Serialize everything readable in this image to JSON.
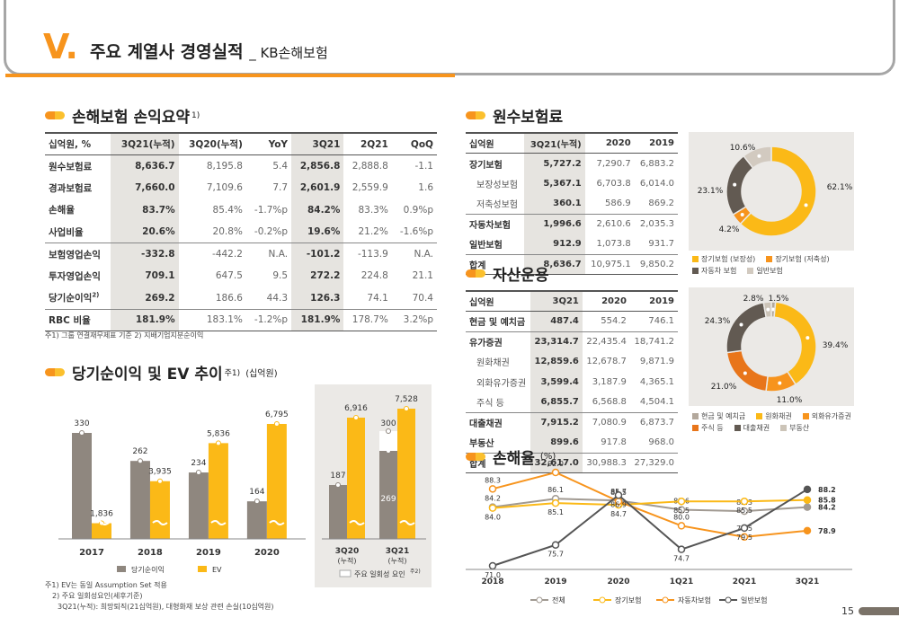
{
  "header": {
    "roman": "V.",
    "title": "주요 계열사 경영실적",
    "subtitle": "_ KB손해보험"
  },
  "sec1": {
    "title": "손해보험 손익요약",
    "sup": "1)",
    "cols": [
      "십억원, %",
      "3Q21(누적)",
      "3Q20(누적)",
      "YoY",
      "3Q21",
      "2Q21",
      "QoQ"
    ],
    "rows": [
      [
        "원수보험료",
        "8,636.7",
        "8,195.8",
        "5.4",
        "2,856.8",
        "2,888.8",
        "-1.1"
      ],
      [
        "경과보험료",
        "7,660.0",
        "7,109.6",
        "7.7",
        "2,601.9",
        "2,559.9",
        "1.6"
      ],
      [
        "손해율",
        "83.7%",
        "85.4%",
        "-1.7%p",
        "84.2%",
        "83.3%",
        "0.9%p"
      ],
      [
        "사업비율",
        "20.6%",
        "20.8%",
        "-0.2%p",
        "19.6%",
        "21.2%",
        "-1.6%p"
      ],
      [
        "보험영업손익",
        "-332.8",
        "-442.2",
        "N.A.",
        "-101.2",
        "-113.9",
        "N.A."
      ],
      [
        "투자영업손익",
        "709.1",
        "647.5",
        "9.5",
        "272.2",
        "224.8",
        "21.1"
      ],
      [
        "당기순이익",
        "269.2",
        "186.6",
        "44.3",
        "126.3",
        "74.1",
        "70.4"
      ],
      [
        "RBC 비율",
        "181.9%",
        "183.1%",
        "-1.2%p",
        "181.9%",
        "178.7%",
        "3.2%p"
      ]
    ],
    "row7_sup": "2)",
    "footnote": "주1) 그룹 연결재무제표 기준   2) 지배기업지분순이익"
  },
  "sec2": {
    "title": "당기순이익 및 EV 추이",
    "sup": "주1)",
    "unit": "(십억원)",
    "legend": [
      "당기순이익",
      "EV"
    ],
    "legend2": "주요 일회성 요인",
    "legend2_sup": "주2)",
    "footnotes": [
      "주1) EV는 동일 Assumption Set 적용",
      "2) 주요 일회성요인(세후기준)",
      "3Q21(누적): 희망퇴직(21십억원), 대형화재 보상 관련 손실(10십억원)"
    ]
  },
  "chart_data": [
    {
      "type": "bar",
      "categories": [
        "2017",
        "2018",
        "2019",
        "2020"
      ],
      "series": [
        {
          "name": "당기순이익",
          "values": [
            330,
            262,
            234,
            164
          ]
        },
        {
          "name": "EV",
          "values": [
            1836,
            3935,
            5836,
            6795
          ]
        }
      ]
    },
    {
      "type": "bar",
      "categories": [
        "3Q20 (누적)",
        "3Q21 (누적)"
      ],
      "series": [
        {
          "name": "당기순이익",
          "values": [
            187,
            269
          ]
        },
        {
          "name": "EV",
          "values": [
            6916,
            7528
          ]
        },
        {
          "name": "주요 일회성 요인",
          "values": [
            null,
            300
          ]
        }
      ]
    },
    {
      "type": "line",
      "title": "손해율",
      "unit": "(%)",
      "categories": [
        "2018",
        "2019",
        "2020",
        "1Q21",
        "2Q21",
        "3Q21"
      ],
      "series": [
        {
          "name": "전체",
          "values": [
            84.2,
            86.1,
            85.7,
            83.6,
            83.3,
            84.2
          ]
        },
        {
          "name": "장기보험",
          "values": [
            84.0,
            85.1,
            84.7,
            85.5,
            85.5,
            85.8
          ]
        },
        {
          "name": "자동차보험",
          "values": [
            88.3,
            92.0,
            85.5,
            80.0,
            77.5,
            78.9
          ]
        },
        {
          "name": "일반보험",
          "values": [
            71.0,
            75.7,
            86.9,
            74.7,
            79.5,
            88.2
          ]
        }
      ]
    },
    {
      "type": "pie",
      "title": "원수보험료",
      "labels": [
        "장기보험(보장성)",
        "장기보험(저축성)",
        "자동차보험",
        "일반보험"
      ],
      "values": [
        62.1,
        4.2,
        23.1,
        10.6
      ]
    },
    {
      "type": "pie",
      "title": "자산운용",
      "labels": [
        "현금 및 예치금",
        "원화채권",
        "외화유가증권",
        "주식 등",
        "대출채권",
        "부동산"
      ],
      "values": [
        1.5,
        39.4,
        11.0,
        21.0,
        24.3,
        2.8
      ]
    }
  ],
  "sec3": {
    "title": "원수보험료",
    "cols": [
      "십억원",
      "3Q21(누적)",
      "2020",
      "2019"
    ],
    "rows": [
      [
        "장기보험",
        "5,727.2",
        "7,290.7",
        "6,883.2"
      ],
      [
        "보장성보험",
        "5,367.1",
        "6,703.8",
        "6,014.0"
      ],
      [
        "저축성보험",
        "360.1",
        "586.9",
        "869.2"
      ],
      [
        "자동차보험",
        "1,996.6",
        "2,610.6",
        "2,035.3"
      ],
      [
        "일반보험",
        "912.9",
        "1,073.8",
        "931.7"
      ],
      [
        "합계",
        "8,636.7",
        "10,975.1",
        "9,850.2"
      ]
    ],
    "legend": [
      "장기보험 (보장성)",
      "장기보험 (저축성)",
      "자동차 보험",
      "일반보험"
    ],
    "pct": [
      "62.1%",
      "4.2%",
      "23.1%",
      "10.6%"
    ]
  },
  "sec4": {
    "title": "자산운용",
    "cols": [
      "십억원",
      "3Q21",
      "2020",
      "2019"
    ],
    "rows": [
      [
        "현금 및 예치금",
        "487.4",
        "554.2",
        "746.1"
      ],
      [
        "유가증권",
        "23,314.7",
        "22,435.4",
        "18,741.2"
      ],
      [
        "원화채권",
        "12,859.6",
        "12,678.7",
        "9,871.9"
      ],
      [
        "외화유가증권",
        "3,599.4",
        "3,187.9",
        "4,365.1"
      ],
      [
        "주식 등",
        "6,855.7",
        "6,568.8",
        "4,504.1"
      ],
      [
        "대출채권",
        "7,915.2",
        "7,080.9",
        "6,873.7"
      ],
      [
        "부동산",
        "899.6",
        "917.8",
        "968.0"
      ],
      [
        "합계",
        "32,617.0",
        "30,988.3",
        "27,329.0"
      ]
    ],
    "legend": [
      "현금 및 예치금",
      "원화채권",
      "외화유가증권",
      "주식 등",
      "대출채권",
      "부동산"
    ],
    "pct": [
      "1.5%",
      "39.4%",
      "11.0%",
      "21.0%",
      "24.3%",
      "2.8%"
    ]
  },
  "sec5": {
    "title": "손해율",
    "unit": "(%)"
  },
  "colors": {
    "orange": "#f7941d",
    "gold": "#fbb917",
    "gray": "#8f877f",
    "dark": "#625a52",
    "lightgray": "#d2cac0",
    "brown": "#b3a89c"
  },
  "page_number": "15"
}
